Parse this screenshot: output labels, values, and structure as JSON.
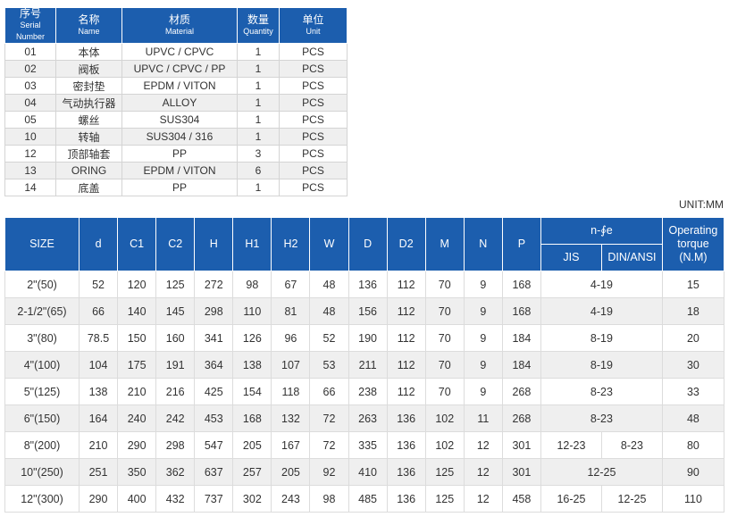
{
  "parts_table": {
    "header": [
      [
        "序号",
        "Serial Number"
      ],
      [
        "名称",
        "Name"
      ],
      [
        "材质",
        "Material"
      ],
      [
        "数量",
        "Quantity"
      ],
      [
        "单位",
        "Unit"
      ]
    ],
    "rows": [
      [
        "01",
        "本体",
        "UPVC / CPVC",
        "1",
        "PCS"
      ],
      [
        "02",
        "阀板",
        "UPVC / CPVC / PP",
        "1",
        "PCS"
      ],
      [
        "03",
        "密封垫",
        "EPDM / VITON",
        "1",
        "PCS"
      ],
      [
        "04",
        "气动执行器",
        "ALLOY",
        "1",
        "PCS"
      ],
      [
        "05",
        "螺丝",
        "SUS304",
        "1",
        "PCS"
      ],
      [
        "10",
        "转轴",
        "SUS304 / 316",
        "1",
        "PCS"
      ],
      [
        "12",
        "顶部轴套",
        "PP",
        "3",
        "PCS"
      ],
      [
        "13",
        "ORING",
        "EPDM / VITON",
        "6",
        "PCS"
      ],
      [
        "14",
        "底盖",
        "PP",
        "1",
        "PCS"
      ]
    ]
  },
  "unit": "UNIT:MM",
  "dimension_table": {
    "header": [
      "SIZE",
      "d",
      "C1",
      "C2",
      "H",
      "H1",
      "H2",
      "W",
      "D",
      "D2",
      "M",
      "N",
      "P"
    ],
    "n_fe_header": "n-∮e",
    "n_fe_sub": [
      "JIS",
      "DIN/ANSI"
    ],
    "torque_header": "Operating torque (N.M)",
    "rows": [
      {
        "cells": [
          "2\"(50)",
          "52",
          "120",
          "125",
          "272",
          "98",
          "67",
          "48",
          "136",
          "112",
          "70",
          "9",
          "168"
        ],
        "n_fe": [
          "4-19"
        ],
        "torque": "15"
      },
      {
        "cells": [
          "2-1/2\"(65)",
          "66",
          "140",
          "145",
          "298",
          "110",
          "81",
          "48",
          "156",
          "112",
          "70",
          "9",
          "168"
        ],
        "n_fe": [
          "4-19"
        ],
        "torque": "18"
      },
      {
        "cells": [
          "3\"(80)",
          "78.5",
          "150",
          "160",
          "341",
          "126",
          "96",
          "52",
          "190",
          "112",
          "70",
          "9",
          "184"
        ],
        "n_fe": [
          "8-19"
        ],
        "torque": "20"
      },
      {
        "cells": [
          "4\"(100)",
          "104",
          "175",
          "191",
          "364",
          "138",
          "107",
          "53",
          "211",
          "112",
          "70",
          "9",
          "184"
        ],
        "n_fe": [
          "8-19"
        ],
        "torque": "30"
      },
      {
        "cells": [
          "5\"(125)",
          "138",
          "210",
          "216",
          "425",
          "154",
          "118",
          "66",
          "238",
          "112",
          "70",
          "9",
          "268"
        ],
        "n_fe": [
          "8-23"
        ],
        "torque": "33"
      },
      {
        "cells": [
          "6\"(150)",
          "164",
          "240",
          "242",
          "453",
          "168",
          "132",
          "72",
          "263",
          "136",
          "102",
          "11",
          "268"
        ],
        "n_fe": [
          "8-23"
        ],
        "torque": "48"
      },
      {
        "cells": [
          "8\"(200)",
          "210",
          "290",
          "298",
          "547",
          "205",
          "167",
          "72",
          "335",
          "136",
          "102",
          "12",
          "301"
        ],
        "n_fe": [
          "12-23",
          "8-23"
        ],
        "torque": "80"
      },
      {
        "cells": [
          "10\"(250)",
          "251",
          "350",
          "362",
          "637",
          "257",
          "205",
          "92",
          "410",
          "136",
          "125",
          "12",
          "301"
        ],
        "n_fe": [
          "12-25"
        ],
        "torque": "90"
      },
      {
        "cells": [
          "12\"(300)",
          "290",
          "400",
          "432",
          "737",
          "302",
          "243",
          "98",
          "485",
          "136",
          "125",
          "12",
          "458"
        ],
        "n_fe": [
          "16-25",
          "12-25"
        ],
        "torque": "110"
      }
    ]
  }
}
